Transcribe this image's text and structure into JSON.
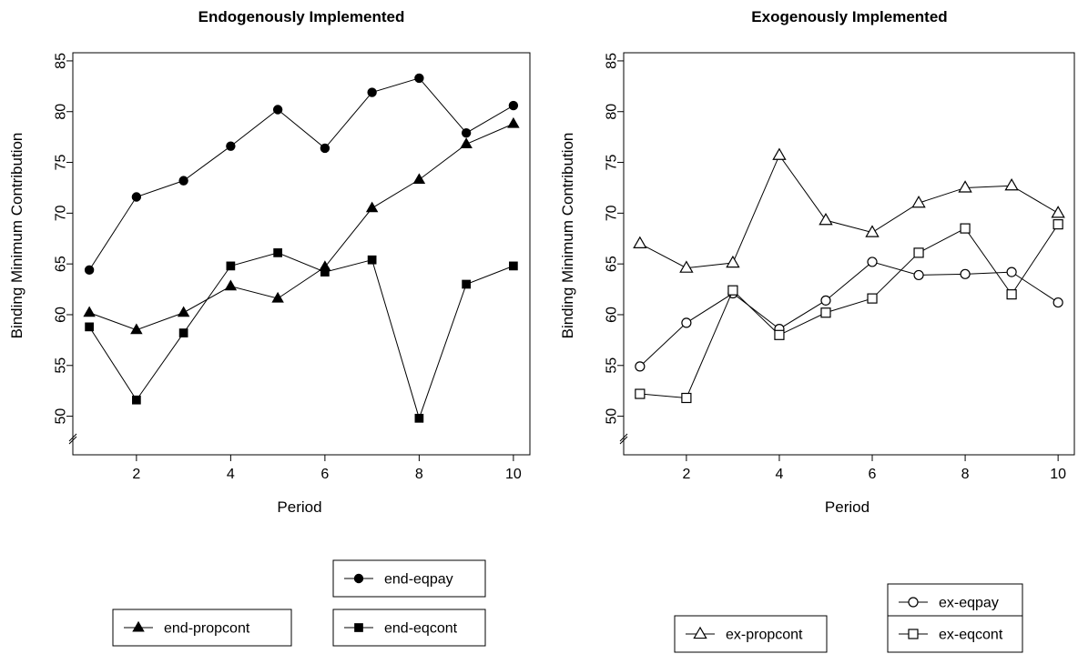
{
  "chart_data": [
    {
      "type": "line",
      "title": "Endogenously Implemented",
      "xlabel": "Period",
      "ylabel": "Binding Minimum Contribution",
      "x": [
        1,
        2,
        3,
        4,
        5,
        6,
        7,
        8,
        9,
        10
      ],
      "xticks": [
        "2",
        "4",
        "6",
        "8",
        "10"
      ],
      "yticks": [
        "50",
        "55",
        "60",
        "65",
        "70",
        "75",
        "80",
        "85"
      ],
      "xlim": [
        0.65,
        10.35
      ],
      "ylim": [
        46.2,
        85.8
      ],
      "axis_break": true,
      "grid": false,
      "legend_placement": "bottom",
      "series": [
        {
          "name": "end-eqpay",
          "marker": "filled-circle",
          "values": [
            64.4,
            71.6,
            73.2,
            76.6,
            80.2,
            76.4,
            81.9,
            83.3,
            77.9,
            80.6
          ]
        },
        {
          "name": "end-propcont",
          "marker": "filled-triangle",
          "values": [
            60.2,
            58.5,
            60.2,
            62.8,
            61.6,
            64.7,
            70.5,
            73.3,
            76.8,
            78.8
          ]
        },
        {
          "name": "end-eqcont",
          "marker": "filled-square",
          "values": [
            58.8,
            51.6,
            58.2,
            64.8,
            66.1,
            64.2,
            65.4,
            49.8,
            63.0,
            64.8
          ]
        }
      ]
    },
    {
      "type": "line",
      "title": "Exogenously Implemented",
      "xlabel": "Period",
      "ylabel": "Binding Minimum Contribution",
      "x": [
        1,
        2,
        3,
        4,
        5,
        6,
        7,
        8,
        9,
        10
      ],
      "xticks": [
        "2",
        "4",
        "6",
        "8",
        "10"
      ],
      "yticks": [
        "50",
        "55",
        "60",
        "65",
        "70",
        "75",
        "80",
        "85"
      ],
      "xlim": [
        0.65,
        10.35
      ],
      "ylim": [
        46.2,
        85.8
      ],
      "axis_break": true,
      "grid": false,
      "legend_placement": "bottom",
      "series": [
        {
          "name": "ex-eqpay",
          "marker": "open-circle",
          "values": [
            54.9,
            59.2,
            62.1,
            58.6,
            61.4,
            65.2,
            63.9,
            64.0,
            64.2,
            61.2
          ]
        },
        {
          "name": "ex-propcont",
          "marker": "open-triangle",
          "values": [
            67.0,
            64.6,
            65.1,
            75.7,
            69.3,
            68.1,
            71.0,
            72.5,
            72.7,
            70.0
          ]
        },
        {
          "name": "ex-eqcont",
          "marker": "open-square",
          "values": [
            52.2,
            51.8,
            62.4,
            58.0,
            60.2,
            61.6,
            66.1,
            68.5,
            62.0,
            68.9
          ]
        }
      ]
    }
  ]
}
